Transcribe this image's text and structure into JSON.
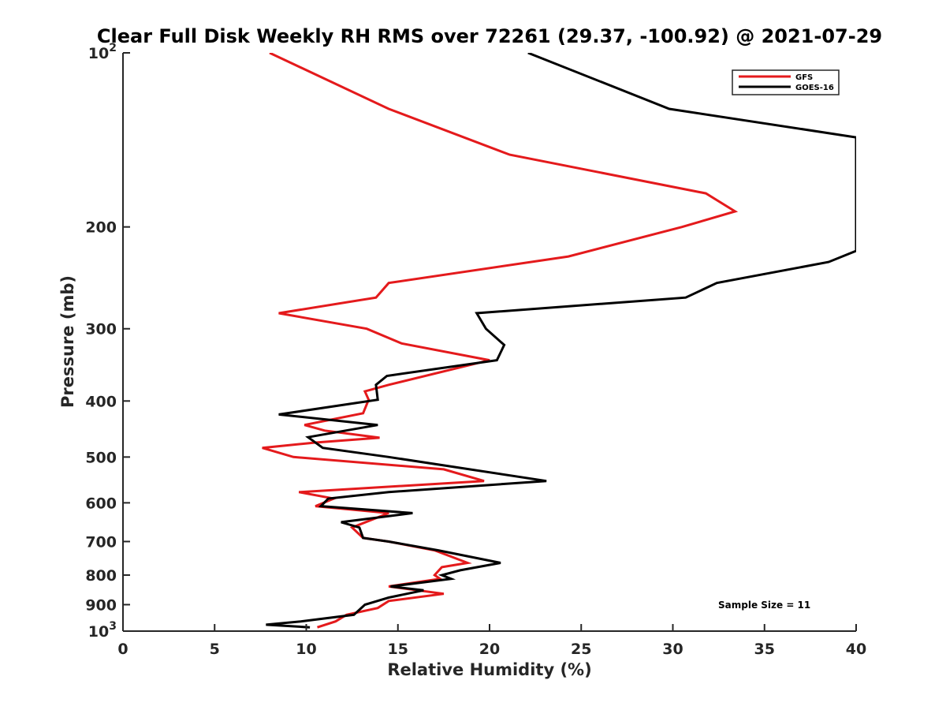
{
  "chart_data": {
    "type": "line",
    "title": "Clear Full Disk Weekly RH RMS over 72261 (29.37, -100.92) @ 2021-07-29",
    "xlabel": "Relative Humidity (%)",
    "ylabel": "Pressure (mb)",
    "xlim": [
      0,
      40
    ],
    "ylim": [
      100,
      1000
    ],
    "y_scale": "log",
    "y_reversed": true,
    "x_ticks": [
      0,
      5,
      10,
      15,
      20,
      25,
      30,
      35,
      40
    ],
    "x_tick_labels": [
      "0",
      "5",
      "10",
      "15",
      "20",
      "25",
      "30",
      "35",
      "40"
    ],
    "y_ticks": [
      100,
      200,
      300,
      400,
      500,
      600,
      700,
      800,
      900,
      1000
    ],
    "y_tick_labels": [
      {
        "base": "10",
        "exp": "2"
      },
      {
        "base": "200",
        "exp": ""
      },
      {
        "base": "300",
        "exp": ""
      },
      {
        "base": "400",
        "exp": ""
      },
      {
        "base": "500",
        "exp": ""
      },
      {
        "base": "600",
        "exp": ""
      },
      {
        "base": "700",
        "exp": ""
      },
      {
        "base": "800",
        "exp": ""
      },
      {
        "base": "900",
        "exp": ""
      },
      {
        "base": "10",
        "exp": "3"
      }
    ],
    "grid": false,
    "legend_position": "top-right",
    "annotation": "Sample Size = 11",
    "series": [
      {
        "name": "GFS",
        "color": "#e41a1c",
        "points": [
          [
            8.0,
            100
          ],
          [
            14.5,
            125
          ],
          [
            21.1,
            150
          ],
          [
            31.8,
            175
          ],
          [
            33.4,
            188
          ],
          [
            30.5,
            200
          ],
          [
            24.3,
            225
          ],
          [
            14.5,
            250
          ],
          [
            13.8,
            265
          ],
          [
            8.5,
            282
          ],
          [
            13.3,
            300
          ],
          [
            15.2,
            318
          ],
          [
            20.0,
            340
          ],
          [
            14.5,
            375
          ],
          [
            13.2,
            385
          ],
          [
            13.4,
            398
          ],
          [
            13.1,
            420
          ],
          [
            9.9,
            440
          ],
          [
            11.0,
            450
          ],
          [
            14.0,
            463
          ],
          [
            10.5,
            472
          ],
          [
            7.6,
            482
          ],
          [
            9.3,
            500
          ],
          [
            17.5,
            525
          ],
          [
            19.7,
            550
          ],
          [
            9.6,
            575
          ],
          [
            11.5,
            590
          ],
          [
            10.5,
            608
          ],
          [
            14.5,
            625
          ],
          [
            12.5,
            662
          ],
          [
            13.1,
            690
          ],
          [
            14.5,
            700
          ],
          [
            17.0,
            725
          ],
          [
            18.8,
            762
          ],
          [
            17.4,
            775
          ],
          [
            17.0,
            800
          ],
          [
            17.3,
            812
          ],
          [
            14.5,
            837
          ],
          [
            17.5,
            862
          ],
          [
            14.5,
            887
          ],
          [
            13.9,
            912
          ],
          [
            12.2,
            937
          ],
          [
            11.6,
            962
          ],
          [
            10.6,
            985
          ]
        ]
      },
      {
        "name": "GOES-16",
        "color": "#000000",
        "points": [
          [
            22.1,
            100
          ],
          [
            29.8,
            125
          ],
          [
            40.0,
            140
          ],
          [
            40.0,
            220
          ],
          [
            38.5,
            230
          ],
          [
            32.4,
            250
          ],
          [
            30.7,
            265
          ],
          [
            19.3,
            282
          ],
          [
            19.8,
            300
          ],
          [
            20.8,
            320
          ],
          [
            20.4,
            340
          ],
          [
            14.4,
            362
          ],
          [
            13.8,
            375
          ],
          [
            13.9,
            398
          ],
          [
            8.5,
            422
          ],
          [
            13.9,
            440
          ],
          [
            10.1,
            462
          ],
          [
            10.9,
            482
          ],
          [
            14.5,
            500
          ],
          [
            23.1,
            550
          ],
          [
            14.5,
            575
          ],
          [
            11.2,
            590
          ],
          [
            10.8,
            608
          ],
          [
            15.8,
            625
          ],
          [
            11.9,
            648
          ],
          [
            12.9,
            662
          ],
          [
            13.1,
            690
          ],
          [
            14.5,
            700
          ],
          [
            17.2,
            725
          ],
          [
            20.6,
            762
          ],
          [
            18.4,
            785
          ],
          [
            17.4,
            800
          ],
          [
            17.9,
            812
          ],
          [
            14.6,
            837
          ],
          [
            16.4,
            850
          ],
          [
            14.5,
            875
          ],
          [
            13.2,
            900
          ],
          [
            12.6,
            937
          ],
          [
            9.7,
            962
          ],
          [
            7.8,
            975
          ],
          [
            10.2,
            985
          ]
        ]
      }
    ]
  }
}
